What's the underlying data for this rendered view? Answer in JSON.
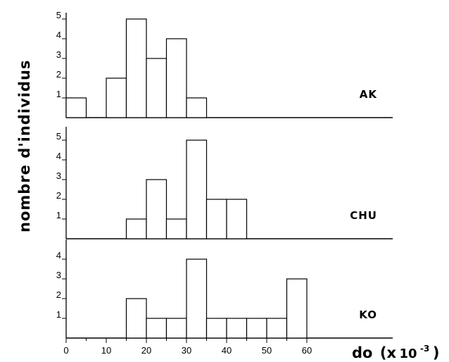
{
  "chart_data": {
    "type": "bar",
    "ylabel": "nombre d'individus",
    "xlabel": {
      "main": "do",
      "unit_open": "(x",
      "unit_base": "10",
      "unit_exp": "-3",
      "unit_close": ")"
    },
    "bin_width": 5,
    "xlim": [
      0,
      65
    ],
    "xticks": [
      0,
      10,
      20,
      30,
      40,
      50,
      60
    ],
    "panels": [
      {
        "name": "AK",
        "ylim": [
          0,
          5
        ],
        "yticks": [
          1,
          2,
          3,
          4,
          5
        ],
        "bins": [
          {
            "x": 0,
            "value": 1
          },
          {
            "x": 10,
            "value": 2
          },
          {
            "x": 15,
            "value": 5
          },
          {
            "x": 20,
            "value": 3
          },
          {
            "x": 25,
            "value": 4
          },
          {
            "x": 30,
            "value": 1
          }
        ]
      },
      {
        "name": "CHU",
        "ylim": [
          0,
          5
        ],
        "yticks": [
          1,
          2,
          3,
          4,
          5
        ],
        "bins": [
          {
            "x": 15,
            "value": 1
          },
          {
            "x": 20,
            "value": 3
          },
          {
            "x": 25,
            "value": 1
          },
          {
            "x": 30,
            "value": 5
          },
          {
            "x": 35,
            "value": 2
          },
          {
            "x": 40,
            "value": 2
          }
        ]
      },
      {
        "name": "KO",
        "ylim": [
          0,
          4
        ],
        "yticks": [
          1,
          2,
          3,
          4
        ],
        "bins": [
          {
            "x": 15,
            "value": 2
          },
          {
            "x": 20,
            "value": 1
          },
          {
            "x": 25,
            "value": 1
          },
          {
            "x": 30,
            "value": 4
          },
          {
            "x": 35,
            "value": 1
          },
          {
            "x": 40,
            "value": 1
          },
          {
            "x": 45,
            "value": 1
          },
          {
            "x": 50,
            "value": 1
          },
          {
            "x": 55,
            "value": 3
          }
        ]
      }
    ]
  }
}
